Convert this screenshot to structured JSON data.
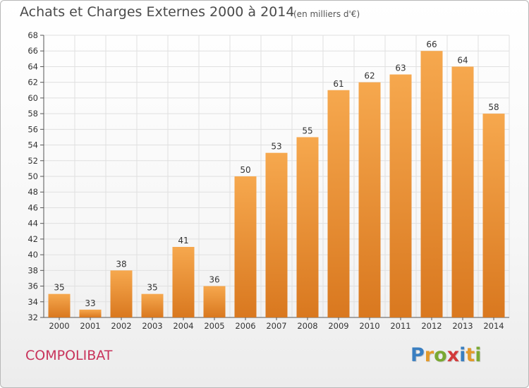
{
  "header": {
    "title": "Achats et Charges Externes 2000 à 2014",
    "subtitle": "(en milliers d'€)"
  },
  "footer": {
    "commune": "COMPOLIBAT",
    "logo_text": "Proxiti",
    "logo_letters": [
      {
        "char": "P",
        "color": "#3a7fc1"
      },
      {
        "char": "r",
        "color": "#e39a2a"
      },
      {
        "char": "o",
        "color": "#7aa832"
      },
      {
        "char": "x",
        "color": "#d23a3a"
      },
      {
        "char": "i",
        "color": "#3a7fc1"
      },
      {
        "char": "t",
        "color": "#e39a2a"
      },
      {
        "char": "i",
        "color": "#7aa832"
      }
    ]
  },
  "chart_data": {
    "type": "bar",
    "title": "Achats et Charges Externes 2000 à 2014",
    "subtitle": "(en milliers d'€)",
    "categories": [
      "2000",
      "2001",
      "2002",
      "2003",
      "2004",
      "2005",
      "2006",
      "2007",
      "2008",
      "2009",
      "2010",
      "2011",
      "2012",
      "2013",
      "2014"
    ],
    "values": [
      35,
      33,
      38,
      35,
      41,
      36,
      50,
      53,
      55,
      61,
      62,
      63,
      66,
      64,
      58
    ],
    "ylim": [
      32,
      68
    ],
    "yticks": [
      32,
      34,
      36,
      38,
      40,
      42,
      44,
      46,
      48,
      50,
      52,
      54,
      56,
      58,
      60,
      62,
      64,
      66,
      68
    ],
    "grid": true,
    "bar_color_light": "#f6a84e",
    "bar_color_dark": "#d9781f",
    "grid_color": "#e0e0e0"
  }
}
